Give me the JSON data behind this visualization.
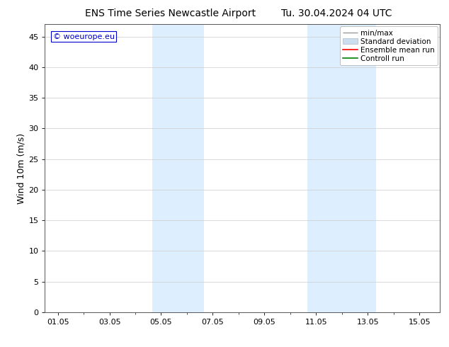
{
  "title_left": "ENS Time Series Newcastle Airport",
  "title_right": "Tu. 30.04.2024 04 UTC",
  "ylabel": "Wind 10m (m/s)",
  "ylim": [
    0,
    47
  ],
  "yticks": [
    0,
    5,
    10,
    15,
    20,
    25,
    30,
    35,
    40,
    45
  ],
  "xtick_labels": [
    "01.05",
    "03.05",
    "05.05",
    "07.05",
    "09.05",
    "11.05",
    "13.05",
    "15.05"
  ],
  "xtick_positions": [
    0,
    2,
    4,
    6,
    8,
    10,
    12,
    14
  ],
  "x_min": -0.5,
  "x_max": 14.8,
  "shaded_bands": [
    {
      "x_start": 3.67,
      "x_end": 5.67
    },
    {
      "x_start": 9.67,
      "x_end": 12.33
    }
  ],
  "shaded_color": "#ddeeff",
  "background_color": "#ffffff",
  "watermark_text": "© woeurope.eu",
  "watermark_color": "#0000cc",
  "legend_labels": [
    "min/max",
    "Standard deviation",
    "Ensemble mean run",
    "Controll run"
  ],
  "legend_colors": [
    "#999999",
    "#ccddee",
    "#ff0000",
    "#008000"
  ],
  "title_fontsize": 10,
  "tick_fontsize": 8,
  "ylabel_fontsize": 9,
  "legend_fontsize": 7.5,
  "watermark_fontsize": 8
}
